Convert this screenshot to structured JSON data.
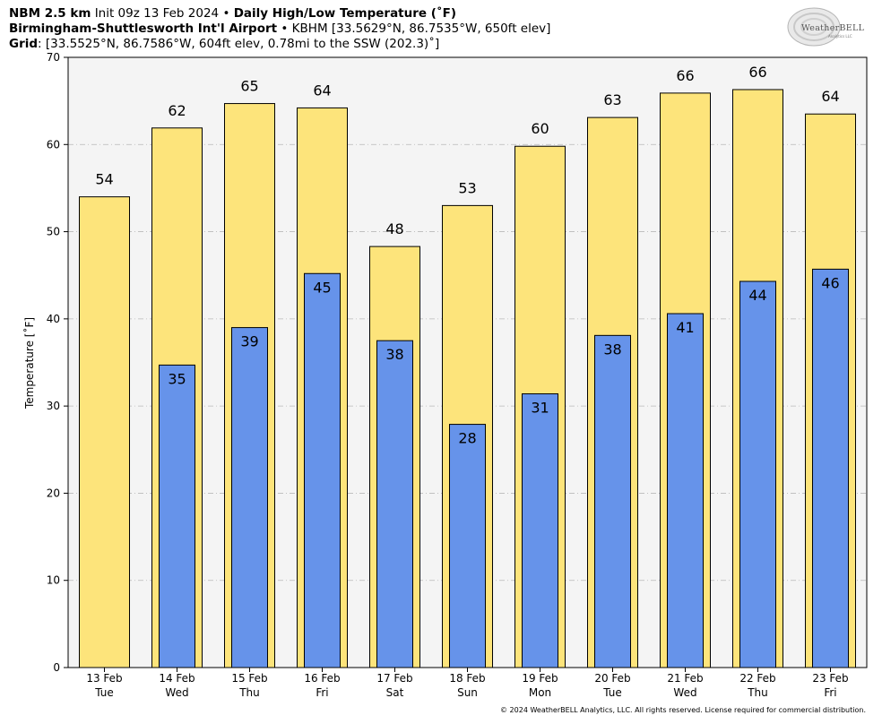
{
  "header": {
    "line1": {
      "model": "NBM 2.5 km",
      "init": "Init 09z 13 Feb 2024",
      "sep": "•",
      "product": "Daily High/Low Temperature (˚F)"
    },
    "line2": {
      "station": "Birmingham-Shuttlesworth Int'l Airport",
      "sep": "•",
      "details": "KBHM [33.5629°N, 86.7535°W, 650ft elev]"
    },
    "line3": {
      "label": "Grid",
      "details": ": [33.5525°N, 86.7586°W, 604ft elev, 0.78mi to the SSW (202.3)˚]"
    }
  },
  "logo": {
    "text": "WeatherBELL",
    "sub": "Analytics LLC"
  },
  "copyright": "© 2024 WeatherBELL Analytics, LLC. All rights reserved. License required for commercial distribution.",
  "colors": {
    "high": "#fde47b",
    "low": "#6693ea",
    "plot_bg": "#f4f4f4",
    "grid": "#b8b8b8"
  },
  "chart_data": {
    "type": "bar",
    "title": "Daily High/Low Temperature (˚F)",
    "ylabel": "Temperature [˚F]",
    "xlabel": "",
    "ylim": [
      0,
      70
    ],
    "yticks": [
      0,
      10,
      20,
      30,
      40,
      50,
      60,
      70
    ],
    "grid": true,
    "categories": [
      {
        "date": "13 Feb",
        "day": "Tue"
      },
      {
        "date": "14 Feb",
        "day": "Wed"
      },
      {
        "date": "15 Feb",
        "day": "Thu"
      },
      {
        "date": "16 Feb",
        "day": "Fri"
      },
      {
        "date": "17 Feb",
        "day": "Sat"
      },
      {
        "date": "18 Feb",
        "day": "Sun"
      },
      {
        "date": "19 Feb",
        "day": "Mon"
      },
      {
        "date": "20 Feb",
        "day": "Tue"
      },
      {
        "date": "21 Feb",
        "day": "Wed"
      },
      {
        "date": "22 Feb",
        "day": "Thu"
      },
      {
        "date": "23 Feb",
        "day": "Fri"
      }
    ],
    "series": [
      {
        "key": "high",
        "values": [
          54,
          61.9,
          64.7,
          64.2,
          48.3,
          53.0,
          59.8,
          63.1,
          65.9,
          66.3,
          63.5
        ],
        "labels": [
          "54",
          "62",
          "65",
          "64",
          "48",
          "53",
          "60",
          "63",
          "66",
          "66",
          "64"
        ]
      },
      {
        "key": "low",
        "values": [
          null,
          34.7,
          39.0,
          45.2,
          37.5,
          27.9,
          31.4,
          38.1,
          40.6,
          44.3,
          45.7
        ],
        "labels": [
          null,
          "35",
          "39",
          "45",
          "38",
          "28",
          "31",
          "38",
          "41",
          "44",
          "46"
        ]
      }
    ]
  }
}
